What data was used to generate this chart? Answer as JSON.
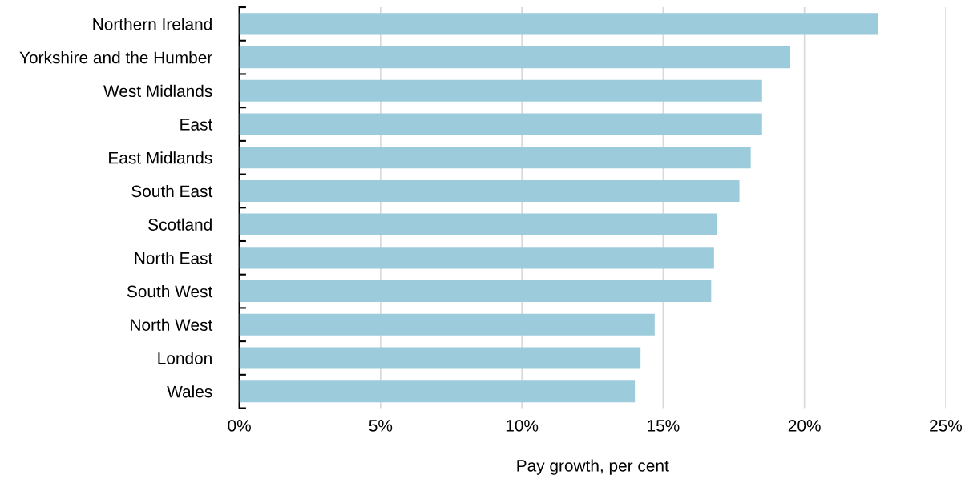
{
  "chart_data": {
    "type": "bar",
    "orientation": "horizontal",
    "xlabel": "Pay growth, per cent",
    "categories": [
      "Northern Ireland",
      "Yorkshire and the Humber",
      "West Midlands",
      "East",
      "East Midlands",
      "South East",
      "Scotland",
      "North East",
      "South West",
      "North West",
      "London",
      "Wales"
    ],
    "values": [
      22.6,
      19.5,
      18.5,
      18.5,
      18.1,
      17.7,
      16.9,
      16.8,
      16.7,
      14.7,
      14.2,
      14.0
    ],
    "color": "#9ccbdb",
    "xlim": [
      0,
      25
    ],
    "xticks": [
      {
        "value": 0,
        "label": "0%"
      },
      {
        "value": 5,
        "label": "5%"
      },
      {
        "value": 10,
        "label": "10%"
      },
      {
        "value": 15,
        "label": "15%"
      },
      {
        "value": 20,
        "label": "20%"
      },
      {
        "value": 25,
        "label": "25%"
      }
    ],
    "grid": "x"
  }
}
